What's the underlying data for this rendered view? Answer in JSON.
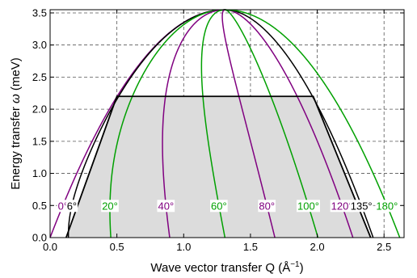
{
  "chart_data": {
    "type": "line",
    "title": "",
    "xlabel": "Wave vector transfer Q (Å",
    "xlabel_sup": "−1",
    "xlabel_close": ")",
    "ylabel_prefix": "Energy transfer ",
    "ylabel_symbol": "ω",
    "ylabel_suffix": " (meV)",
    "xlim": [
      0,
      2.65
    ],
    "ylim": [
      0,
      3.55
    ],
    "xticks": [
      0.0,
      0.5,
      1.0,
      1.5,
      2.0,
      2.5
    ],
    "xtick_labels": [
      "0.0",
      "0.5",
      "1.0",
      "1.5",
      "2.0",
      "2.5"
    ],
    "yticks": [
      0.0,
      0.5,
      1.0,
      1.5,
      2.0,
      2.5,
      3.0,
      3.5
    ],
    "ytick_labels": [
      "0.0",
      "0.5",
      "1.0",
      "1.5",
      "2.0",
      "2.5",
      "3.0",
      "3.5"
    ],
    "grid": true,
    "incident_energy_meV": 3.55,
    "coverage_region": {
      "fill": "#dcdcdc",
      "edge_color": "#000000",
      "points": [
        [
          0.12,
          0.0
        ],
        [
          0.5,
          2.2
        ],
        [
          1.97,
          2.2
        ],
        [
          2.4,
          0.0
        ]
      ]
    },
    "scattering_angle_curves": [
      {
        "angle_deg": 0,
        "label": "0°",
        "color": "#800080"
      },
      {
        "angle_deg": 6,
        "label": "6°",
        "color": "#000000"
      },
      {
        "angle_deg": 20,
        "label": "20°",
        "color": "#00a000"
      },
      {
        "angle_deg": 40,
        "label": "40°",
        "color": "#800080"
      },
      {
        "angle_deg": 60,
        "label": "60°",
        "color": "#00a000"
      },
      {
        "angle_deg": 80,
        "label": "80°",
        "color": "#800080"
      },
      {
        "angle_deg": 100,
        "label": "100°",
        "color": "#00a000"
      },
      {
        "angle_deg": 120,
        "label": "120°",
        "color": "#800080"
      },
      {
        "angle_deg": 135,
        "label": "135°",
        "color": "#000000"
      },
      {
        "angle_deg": 180,
        "label": "180°",
        "color": "#00a000"
      }
    ],
    "label_energy_meV": 0.5
  }
}
